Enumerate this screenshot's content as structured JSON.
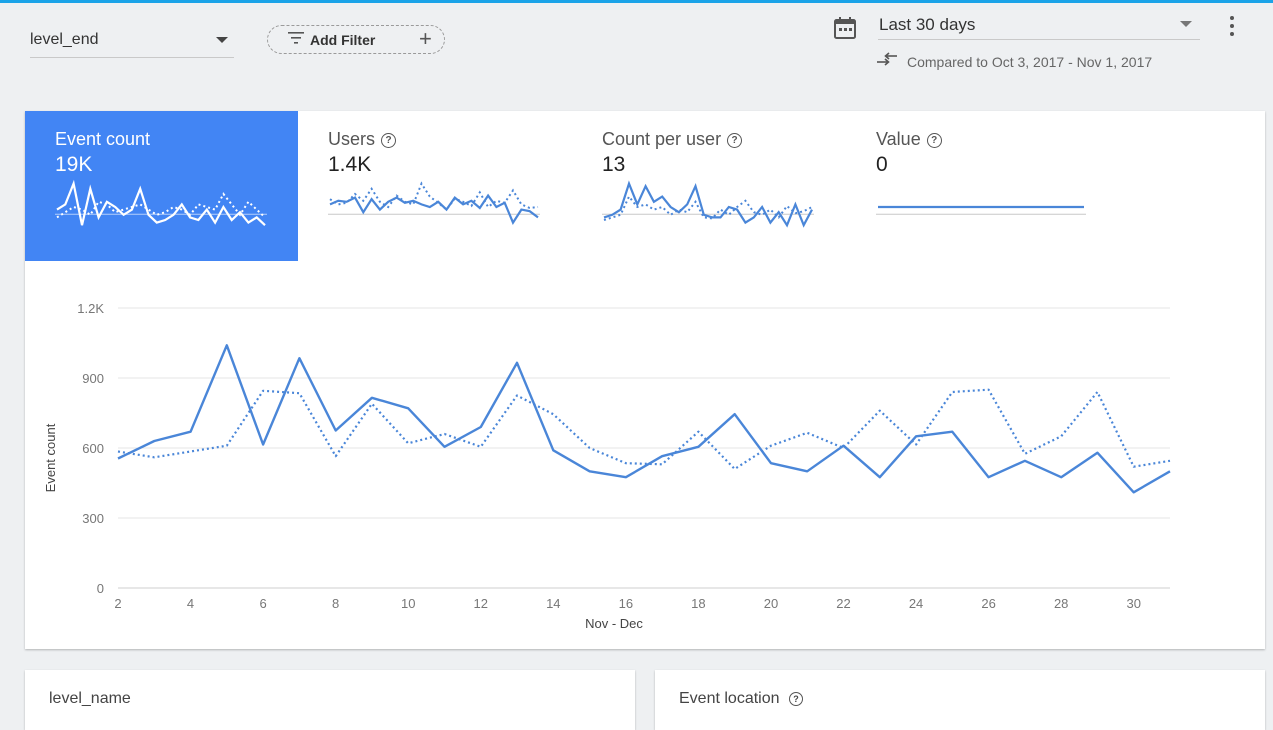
{
  "toolbar": {
    "event_name": "level_end",
    "add_filter_label": "Add Filter",
    "date_range": "Last 30 days",
    "compare_text": "Compared to Oct 3, 2017 - Nov 1, 2017"
  },
  "tabs": [
    {
      "name": "Event count",
      "value": "19K",
      "help": false,
      "active": true
    },
    {
      "name": "Users",
      "value": "1.4K",
      "help": true,
      "active": false
    },
    {
      "name": "Count per user",
      "value": "13",
      "help": true,
      "active": false
    },
    {
      "name": "Value",
      "value": "0",
      "help": true,
      "active": false
    }
  ],
  "help_glyph": "?",
  "colors": {
    "accent": "#4285f4",
    "line": "#4a86d8",
    "grid": "#e6e6e6",
    "axis_text": "#777777"
  },
  "chart_data": {
    "type": "line",
    "ylabel": "Event count",
    "xlabel": "Nov - Dec",
    "ylim": [
      0,
      1200
    ],
    "yticks": [
      0,
      300,
      600,
      900,
      1200
    ],
    "ytick_labels": [
      "0",
      "300",
      "600",
      "900",
      "1.2K"
    ],
    "xticks": [
      2,
      4,
      6,
      8,
      10,
      12,
      14,
      16,
      18,
      20,
      22,
      24,
      26,
      28,
      30
    ],
    "x": [
      2,
      3,
      4,
      5,
      6,
      7,
      8,
      9,
      10,
      11,
      12,
      13,
      14,
      15,
      16,
      17,
      18,
      19,
      20,
      21,
      22,
      23,
      24,
      25,
      26,
      27,
      28,
      29,
      30,
      31
    ],
    "grid": true,
    "series": [
      {
        "style": "solid",
        "values": [
          555,
          630,
          670,
          1040,
          615,
          985,
          675,
          815,
          770,
          605,
          690,
          965,
          590,
          500,
          475,
          565,
          605,
          745,
          535,
          500,
          610,
          475,
          650,
          670,
          475,
          545,
          475,
          580,
          410,
          500
        ]
      },
      {
        "style": "dotted",
        "values": [
          585,
          560,
          585,
          610,
          845,
          835,
          565,
          790,
          620,
          660,
          605,
          825,
          745,
          600,
          535,
          530,
          670,
          510,
          610,
          665,
          600,
          760,
          615,
          840,
          850,
          575,
          650,
          840,
          520,
          545
        ]
      }
    ]
  },
  "sparklines": [
    {
      "solid": [
        0.45,
        0.55,
        0.95,
        0.15,
        0.85,
        0.3,
        0.6,
        0.5,
        0.35,
        0.45,
        0.85,
        0.35,
        0.2,
        0.25,
        0.35,
        0.55,
        0.3,
        0.25,
        0.45,
        0.2,
        0.5,
        0.25,
        0.4,
        0.2,
        0.3,
        0.15
      ],
      "dotted": [
        0.3,
        0.4,
        0.5,
        0.45,
        0.35,
        0.6,
        0.55,
        0.4,
        0.45,
        0.5,
        0.55,
        0.45,
        0.35,
        0.4,
        0.5,
        0.45,
        0.35,
        0.55,
        0.5,
        0.45,
        0.75,
        0.55,
        0.35,
        0.6,
        0.45,
        0.3
      ]
    },
    {
      "solid": [
        0.55,
        0.62,
        0.6,
        0.68,
        0.4,
        0.65,
        0.45,
        0.6,
        0.68,
        0.58,
        0.62,
        0.55,
        0.5,
        0.6,
        0.45,
        0.68,
        0.55,
        0.62,
        0.48,
        0.72,
        0.5,
        0.58,
        0.2,
        0.45,
        0.42,
        0.3
      ],
      "dotted": [
        0.65,
        0.55,
        0.58,
        0.75,
        0.62,
        0.85,
        0.6,
        0.5,
        0.72,
        0.6,
        0.55,
        0.95,
        0.7,
        0.58,
        0.45,
        0.66,
        0.6,
        0.52,
        0.78,
        0.5,
        0.62,
        0.58,
        0.82,
        0.55,
        0.48,
        0.5
      ]
    },
    {
      "solid": [
        0.3,
        0.35,
        0.45,
        0.95,
        0.55,
        0.9,
        0.6,
        0.7,
        0.5,
        0.4,
        0.55,
        0.9,
        0.35,
        0.3,
        0.3,
        0.5,
        0.45,
        0.2,
        0.3,
        0.5,
        0.2,
        0.4,
        0.15,
        0.55,
        0.15,
        0.45
      ],
      "dotted": [
        0.25,
        0.3,
        0.35,
        0.7,
        0.5,
        0.55,
        0.45,
        0.5,
        0.35,
        0.45,
        0.4,
        0.6,
        0.3,
        0.28,
        0.45,
        0.35,
        0.5,
        0.62,
        0.4,
        0.35,
        0.45,
        0.3,
        0.52,
        0.38,
        0.42,
        0.5
      ]
    },
    {
      "solid": [
        0.5,
        0.5,
        0.5,
        0.5,
        0.5,
        0.5,
        0.5,
        0.5,
        0.5,
        0.5,
        0.5,
        0.5,
        0.5,
        0.5,
        0.5,
        0.5,
        0.5,
        0.5,
        0.5,
        0.5
      ],
      "dotted": [
        0.5,
        0.5,
        0.5,
        0.5,
        0.5,
        0.5,
        0.5,
        0.5,
        0.5,
        0.5,
        0.5,
        0.5,
        0.5,
        0.5,
        0.5,
        0.5,
        0.5,
        0.5,
        0.5,
        0.5
      ]
    }
  ],
  "bottom_cards": [
    {
      "title": "level_name",
      "help": false
    },
    {
      "title": "Event location",
      "help": true
    }
  ]
}
